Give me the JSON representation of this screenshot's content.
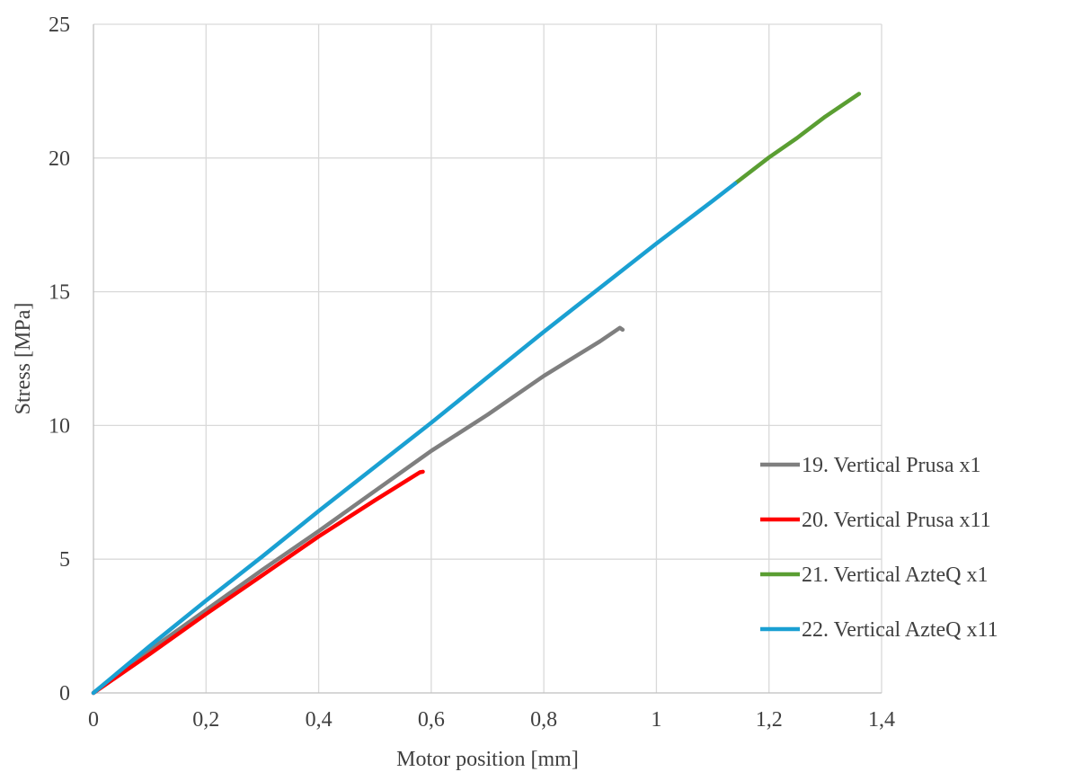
{
  "chart_data": {
    "type": "line",
    "title": "",
    "xlabel": "Motor position [mm]",
    "ylabel": "Stress [MPa]",
    "xlim": [
      0,
      1.4
    ],
    "ylim": [
      0,
      25
    ],
    "x_ticks": [
      "0",
      "0,2",
      "0,4",
      "0,6",
      "0,8",
      "1",
      "1,2",
      "1,4"
    ],
    "y_ticks": [
      "0",
      "5",
      "10",
      "15",
      "20",
      "25"
    ],
    "grid": "vertical and horizontal major gridlines",
    "legend_position": "right",
    "series": [
      {
        "name": "19. Vertical Prusa x1",
        "color": "#7f7f7f",
        "points": [
          [
            0,
            0
          ],
          [
            0.1,
            1.6
          ],
          [
            0.2,
            3.1
          ],
          [
            0.3,
            4.6
          ],
          [
            0.4,
            6.05
          ],
          [
            0.5,
            7.55
          ],
          [
            0.6,
            9.05
          ],
          [
            0.7,
            10.4
          ],
          [
            0.8,
            11.85
          ],
          [
            0.9,
            13.15
          ],
          [
            0.935,
            13.65
          ],
          [
            0.94,
            13.58
          ]
        ]
      },
      {
        "name": "20. Vertical Prusa x11",
        "color": "#ff0000",
        "points": [
          [
            0,
            0
          ],
          [
            0.1,
            1.45
          ],
          [
            0.2,
            2.95
          ],
          [
            0.3,
            4.4
          ],
          [
            0.4,
            5.85
          ],
          [
            0.5,
            7.2
          ],
          [
            0.58,
            8.25
          ],
          [
            0.585,
            8.27
          ]
        ]
      },
      {
        "name": "21. Vertical AzteQ x1",
        "color": "#5a9e32",
        "points": [
          [
            1.14,
            19.05
          ],
          [
            1.2,
            20.02
          ],
          [
            1.25,
            20.75
          ],
          [
            1.3,
            21.55
          ],
          [
            1.36,
            22.4
          ]
        ]
      },
      {
        "name": "22. Vertical AzteQ x11",
        "color": "#1aa0d2",
        "points": [
          [
            0,
            0
          ],
          [
            0.1,
            1.75
          ],
          [
            0.2,
            3.45
          ],
          [
            0.3,
            5.1
          ],
          [
            0.4,
            6.8
          ],
          [
            0.5,
            8.45
          ],
          [
            0.6,
            10.1
          ],
          [
            0.7,
            11.8
          ],
          [
            0.8,
            13.5
          ],
          [
            0.9,
            15.15
          ],
          [
            1.0,
            16.8
          ],
          [
            1.1,
            18.4
          ],
          [
            1.14,
            19.05
          ]
        ]
      }
    ]
  }
}
